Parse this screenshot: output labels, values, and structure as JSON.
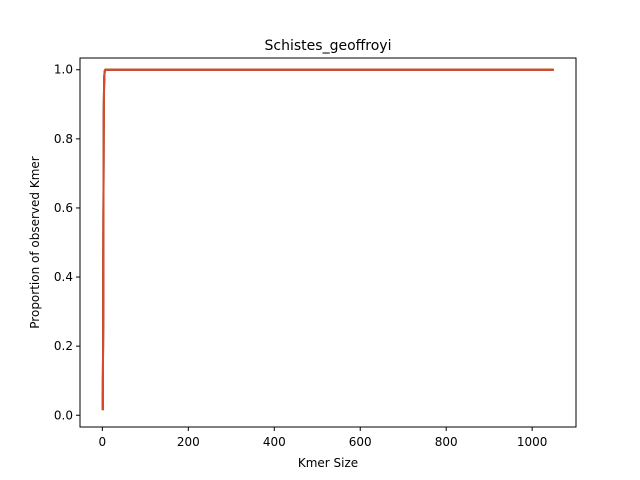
{
  "chart_data": {
    "type": "line",
    "title": "Schistes_geoffroyi",
    "xlabel": "Kmer Size",
    "ylabel": "Proportion of observed Kmer",
    "xlim": [
      -52,
      1102
    ],
    "ylim": [
      -0.034,
      1.034
    ],
    "xticks": [
      0,
      200,
      400,
      600,
      800,
      1000
    ],
    "yticks": [
      0.0,
      0.2,
      0.4,
      0.6,
      0.8,
      1.0
    ],
    "xtick_labels": [
      "0",
      "200",
      "400",
      "600",
      "800",
      "1000"
    ],
    "ytick_labels": [
      "0.0",
      "0.2",
      "0.4",
      "0.6",
      "0.8",
      "1.0"
    ],
    "grid": false,
    "series": [
      {
        "color": "#1f77b4",
        "x": [
          1,
          2,
          3,
          4,
          5,
          6,
          7,
          8,
          9,
          10,
          11,
          12,
          15,
          20,
          50,
          100,
          200,
          400,
          600,
          800,
          1000,
          1050
        ],
        "y": [
          0.015,
          0.3,
          0.82,
          0.96,
          0.99,
          0.998,
          1.0,
          1.0,
          1.0,
          1.0,
          1.0,
          1.0,
          1.0,
          1.0,
          1.0,
          1.0,
          1.0,
          1.0,
          1.0,
          1.0,
          1.0,
          1.0
        ]
      },
      {
        "color": "#ff7f0e",
        "x": [
          1,
          2,
          3,
          4,
          5,
          6,
          7,
          8,
          9,
          10,
          11,
          12,
          15,
          20,
          50,
          100,
          200,
          400,
          600,
          800,
          1000,
          1050
        ],
        "y": [
          0.02,
          0.32,
          0.84,
          0.965,
          0.992,
          0.999,
          1.0,
          1.0,
          1.0,
          1.0,
          1.0,
          1.0,
          1.0,
          1.0,
          1.0,
          1.0,
          1.0,
          1.0,
          1.0,
          1.0,
          1.0,
          1.0
        ]
      },
      {
        "color": "#2ca02c",
        "x": [
          1,
          2,
          3,
          4,
          5,
          6,
          7,
          8,
          9,
          10,
          11,
          12,
          15,
          20,
          50,
          100,
          200,
          400,
          600,
          800,
          1000,
          1050
        ],
        "y": [
          0.015,
          0.28,
          0.8,
          0.95,
          0.988,
          0.997,
          1.0,
          1.0,
          1.0,
          1.0,
          1.0,
          1.0,
          1.0,
          1.0,
          1.0,
          1.0,
          1.0,
          1.0,
          1.0,
          1.0,
          1.0,
          1.0
        ]
      },
      {
        "color": "#d62728",
        "x": [
          1,
          2,
          3,
          4,
          5,
          6,
          7,
          8,
          9,
          10,
          11,
          12,
          15,
          20,
          50,
          100,
          200,
          400,
          600,
          800,
          1000,
          1050
        ],
        "y": [
          0.018,
          0.31,
          0.83,
          0.96,
          0.99,
          0.998,
          1.0,
          1.0,
          1.0,
          1.0,
          1.0,
          1.0,
          1.0,
          1.0,
          1.0,
          1.0,
          1.0,
          1.0,
          1.0,
          1.0,
          1.0,
          1.0
        ]
      },
      {
        "color": "#8c564b",
        "x": [
          1,
          2,
          3,
          4,
          5,
          6,
          7,
          8,
          9,
          10,
          11,
          12,
          15,
          20,
          50,
          100,
          200,
          400,
          600,
          800,
          1000,
          1050
        ],
        "y": [
          0.015,
          0.3,
          0.82,
          0.958,
          0.99,
          0.998,
          1.0,
          1.0,
          1.0,
          1.0,
          1.0,
          1.0,
          1.0,
          1.0,
          1.0,
          1.0,
          1.0,
          1.0,
          1.0,
          1.0,
          1.0,
          1.0
        ]
      },
      {
        "color": "#d84a2a",
        "x": [
          1,
          2,
          3,
          4,
          5,
          6,
          7,
          8,
          9,
          10,
          11,
          12,
          15,
          20,
          50,
          100,
          200,
          400,
          600,
          800,
          1000,
          1050
        ],
        "y": [
          0.015,
          0.3,
          0.82,
          0.96,
          0.99,
          0.998,
          1.0,
          1.0,
          1.0,
          1.0,
          1.0,
          1.0,
          1.0,
          1.0,
          1.0,
          1.0,
          1.0,
          1.0,
          1.0,
          1.0,
          1.0,
          1.0
        ]
      }
    ]
  }
}
